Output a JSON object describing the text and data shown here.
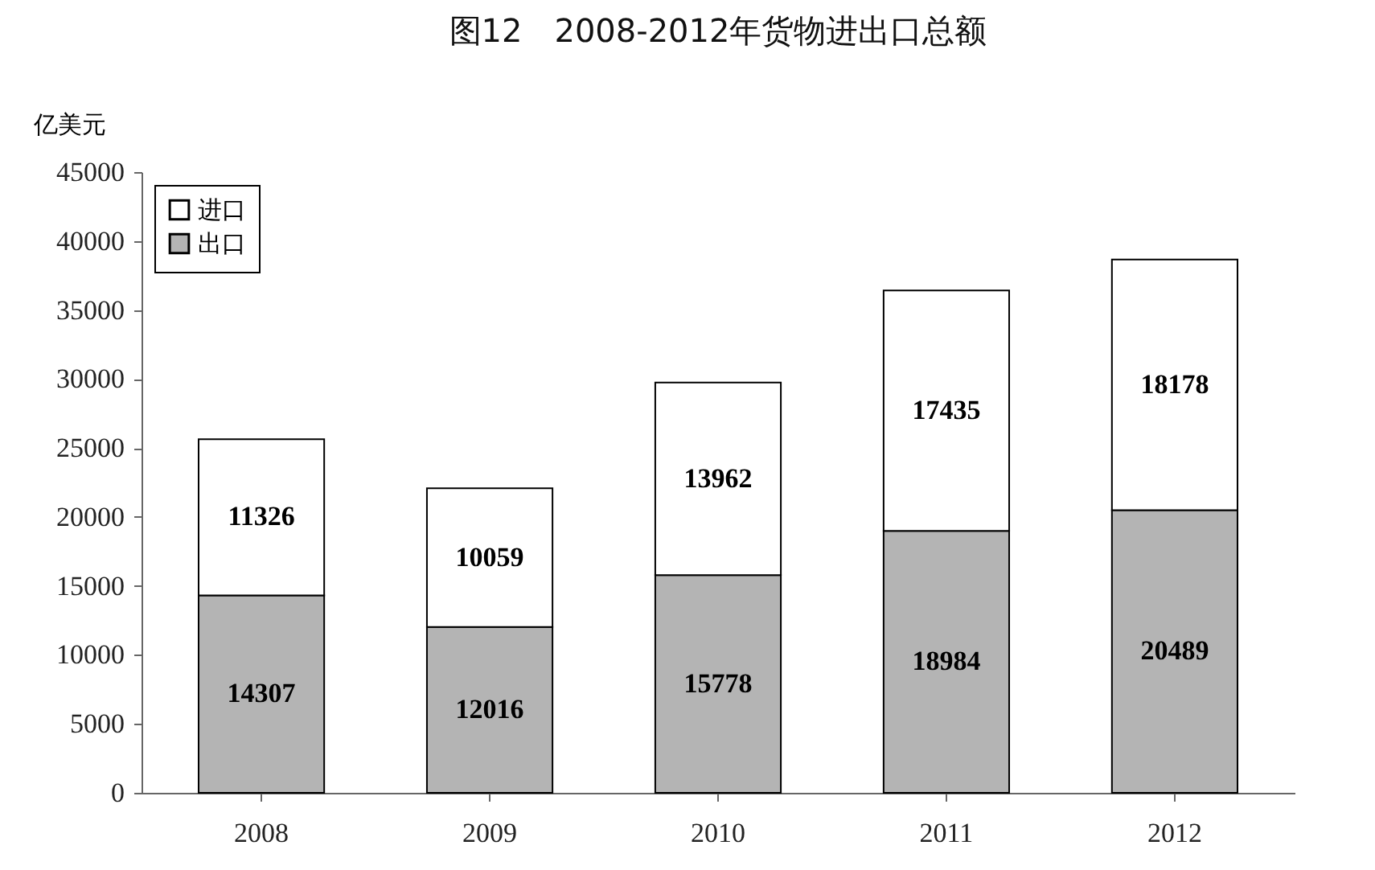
{
  "chart_data": {
    "type": "bar",
    "title": "图12　2008-2012年货物进出口总额",
    "ylabel": "亿美元",
    "categories": [
      "2008",
      "2009",
      "2010",
      "2011",
      "2012"
    ],
    "stacked": true,
    "series": [
      {
        "name": "出口",
        "color": "#b4b4b4",
        "values": [
          14307,
          12016,
          15778,
          18984,
          20489
        ]
      },
      {
        "name": "进口",
        "color": "#ffffff",
        "values": [
          11326,
          10059,
          13962,
          17435,
          18178
        ]
      }
    ],
    "ylim": [
      0,
      45000
    ],
    "yticks": [
      0,
      5000,
      10000,
      15000,
      20000,
      25000,
      30000,
      35000,
      40000,
      45000
    ],
    "data_labels": true,
    "legend": "top left",
    "grid": false
  }
}
